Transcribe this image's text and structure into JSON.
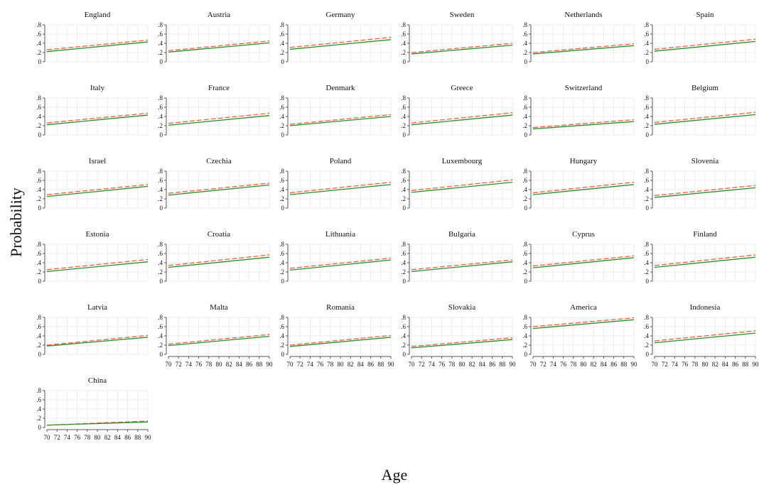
{
  "chart_data": {
    "type": "line",
    "xlabel": "Age",
    "ylabel": "Probability",
    "xlim": [
      70,
      90
    ],
    "ylim": [
      0,
      0.8
    ],
    "x_ticks": [
      70,
      72,
      74,
      76,
      78,
      80,
      82,
      84,
      86,
      88,
      90
    ],
    "x_tick_labels": [
      "70",
      "72",
      "74",
      "76",
      "78",
      "80",
      "82",
      "84",
      "86",
      "88",
      "90"
    ],
    "y_ticks": [
      0,
      0.2,
      0.4,
      0.6,
      0.8
    ],
    "y_tick_labels": [
      "0",
      ".2",
      ".4",
      ".6",
      ".8"
    ],
    "grid": true,
    "colors": {
      "solid": "#2e8b2e",
      "dashed": "#e8613c",
      "grid": "#ececec",
      "axis": "#555555"
    },
    "series_styles": [
      {
        "line": "solid",
        "color": "#2e8b2e"
      },
      {
        "line": "dashed",
        "color": "#e8613c"
      }
    ],
    "panels": [
      {
        "title": "England",
        "x": [
          70,
          90
        ],
        "solid": [
          0.22,
          0.43
        ],
        "dashed": [
          0.26,
          0.47
        ]
      },
      {
        "title": "Austria",
        "x": [
          70,
          90
        ],
        "solid": [
          0.21,
          0.41
        ],
        "dashed": [
          0.24,
          0.45
        ]
      },
      {
        "title": "Germany",
        "x": [
          70,
          90
        ],
        "solid": [
          0.27,
          0.48
        ],
        "dashed": [
          0.31,
          0.53
        ]
      },
      {
        "title": "Sweden",
        "x": [
          70,
          90
        ],
        "solid": [
          0.17,
          0.36
        ],
        "dashed": [
          0.2,
          0.4
        ]
      },
      {
        "title": "Netherlands",
        "x": [
          70,
          90
        ],
        "solid": [
          0.17,
          0.35
        ],
        "dashed": [
          0.2,
          0.39
        ]
      },
      {
        "title": "Spain",
        "x": [
          70,
          90
        ],
        "solid": [
          0.23,
          0.44
        ],
        "dashed": [
          0.27,
          0.49
        ]
      },
      {
        "title": "Italy",
        "x": [
          70,
          90
        ],
        "solid": [
          0.22,
          0.43
        ],
        "dashed": [
          0.26,
          0.47
        ]
      },
      {
        "title": "France",
        "x": [
          70,
          90
        ],
        "solid": [
          0.21,
          0.42
        ],
        "dashed": [
          0.25,
          0.47
        ]
      },
      {
        "title": "Denmark",
        "x": [
          70,
          90
        ],
        "solid": [
          0.2,
          0.4
        ],
        "dashed": [
          0.23,
          0.44
        ]
      },
      {
        "title": "Greece",
        "x": [
          70,
          90
        ],
        "solid": [
          0.22,
          0.43
        ],
        "dashed": [
          0.26,
          0.48
        ]
      },
      {
        "title": "Switzerland",
        "x": [
          70,
          90
        ],
        "solid": [
          0.13,
          0.29
        ],
        "dashed": [
          0.16,
          0.33
        ]
      },
      {
        "title": "Belgium",
        "x": [
          70,
          90
        ],
        "solid": [
          0.23,
          0.44
        ],
        "dashed": [
          0.27,
          0.49
        ]
      },
      {
        "title": "Israel",
        "x": [
          70,
          90
        ],
        "solid": [
          0.25,
          0.47
        ],
        "dashed": [
          0.29,
          0.51
        ]
      },
      {
        "title": "Czechia",
        "x": [
          70,
          90
        ],
        "solid": [
          0.28,
          0.5
        ],
        "dashed": [
          0.32,
          0.54
        ]
      },
      {
        "title": "Poland",
        "x": [
          70,
          90
        ],
        "solid": [
          0.29,
          0.51
        ],
        "dashed": [
          0.33,
          0.56
        ]
      },
      {
        "title": "Luxembourg",
        "x": [
          70,
          90
        ],
        "solid": [
          0.34,
          0.56
        ],
        "dashed": [
          0.38,
          0.61
        ]
      },
      {
        "title": "Hungary",
        "x": [
          70,
          90
        ],
        "solid": [
          0.29,
          0.51
        ],
        "dashed": [
          0.33,
          0.56
        ]
      },
      {
        "title": "Slovenia",
        "x": [
          70,
          90
        ],
        "solid": [
          0.23,
          0.44
        ],
        "dashed": [
          0.27,
          0.49
        ]
      },
      {
        "title": "Estonia",
        "x": [
          70,
          90
        ],
        "solid": [
          0.21,
          0.42
        ],
        "dashed": [
          0.25,
          0.47
        ]
      },
      {
        "title": "Croatia",
        "x": [
          70,
          90
        ],
        "solid": [
          0.3,
          0.52
        ],
        "dashed": [
          0.34,
          0.57
        ]
      },
      {
        "title": "Lithuania",
        "x": [
          70,
          90
        ],
        "solid": [
          0.24,
          0.46
        ],
        "dashed": [
          0.28,
          0.5
        ]
      },
      {
        "title": "Bulgaria",
        "x": [
          70,
          90
        ],
        "solid": [
          0.21,
          0.42
        ],
        "dashed": [
          0.25,
          0.46
        ]
      },
      {
        "title": "Cyprus",
        "x": [
          70,
          90
        ],
        "solid": [
          0.29,
          0.51
        ],
        "dashed": [
          0.33,
          0.55
        ]
      },
      {
        "title": "Finland",
        "x": [
          70,
          90
        ],
        "solid": [
          0.3,
          0.52
        ],
        "dashed": [
          0.34,
          0.57
        ]
      },
      {
        "title": "Latvia",
        "x": [
          70,
          90
        ],
        "solid": [
          0.18,
          0.37
        ],
        "dashed": [
          0.2,
          0.41
        ]
      },
      {
        "title": "Malta",
        "x": [
          70,
          90
        ],
        "solid": [
          0.19,
          0.39
        ],
        "dashed": [
          0.22,
          0.43
        ]
      },
      {
        "title": "Romania",
        "x": [
          70,
          90
        ],
        "solid": [
          0.17,
          0.37
        ],
        "dashed": [
          0.2,
          0.41
        ]
      },
      {
        "title": "Slovakia",
        "x": [
          70,
          90
        ],
        "solid": [
          0.14,
          0.32
        ],
        "dashed": [
          0.17,
          0.36
        ]
      },
      {
        "title": "America",
        "x": [
          70,
          90
        ],
        "solid": [
          0.56,
          0.75
        ],
        "dashed": [
          0.6,
          0.79
        ]
      },
      {
        "title": "Indonesia",
        "x": [
          70,
          90
        ],
        "solid": [
          0.25,
          0.46
        ],
        "dashed": [
          0.29,
          0.51
        ]
      },
      {
        "title": "China",
        "x": [
          70,
          90
        ],
        "solid": [
          0.05,
          0.12
        ],
        "dashed": [
          0.05,
          0.14
        ]
      }
    ]
  }
}
